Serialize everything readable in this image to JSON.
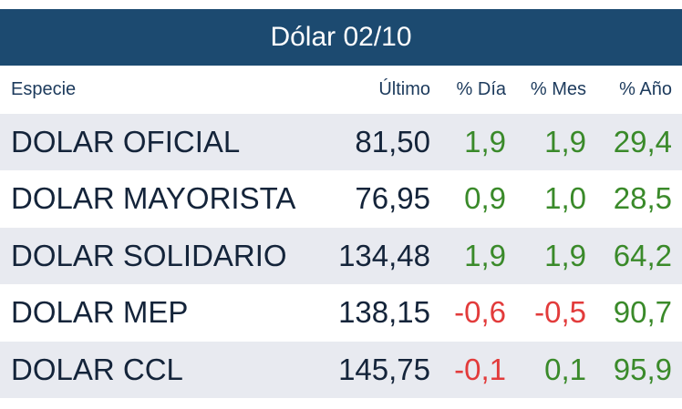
{
  "header": {
    "title": "Dólar 02/10"
  },
  "table": {
    "columns": [
      "Especie",
      "Último",
      "% Día",
      "% Mes",
      "% Año"
    ],
    "rows": [
      [
        "DOLAR OFICIAL",
        "81,50",
        "1,9",
        "1,9",
        "29,4"
      ],
      [
        "DOLAR MAYORISTA",
        "76,95",
        "0,9",
        "1,0",
        "28,5"
      ],
      [
        "DOLAR SOLIDARIO",
        "134,48",
        "1,9",
        "1,9",
        "64,2"
      ],
      [
        "DOLAR MEP",
        "138,15",
        "-0,6",
        "-0,5",
        "90,7"
      ],
      [
        "DOLAR CCL",
        "145,75",
        "-0,1",
        "0,1",
        "95,9"
      ]
    ]
  }
}
